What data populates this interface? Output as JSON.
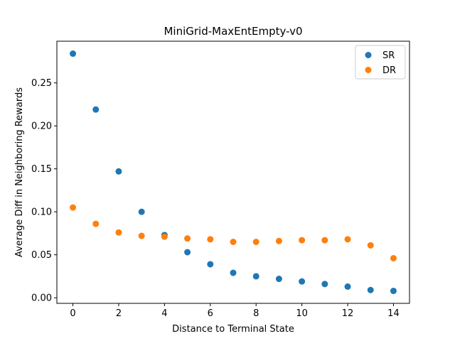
{
  "chart_data": {
    "type": "scatter",
    "title": "MiniGrid-MaxEntEmpty-v0",
    "xlabel": "Distance to Terminal State",
    "ylabel": "Average Diff in Neighboring Rewards",
    "xlim": [
      -0.7,
      14.7
    ],
    "ylim": [
      -0.0065,
      0.2985
    ],
    "xticks": [
      0,
      2,
      4,
      6,
      8,
      10,
      12,
      14
    ],
    "xtick_labels": [
      "0",
      "2",
      "4",
      "6",
      "8",
      "10",
      "12",
      "14"
    ],
    "yticks": [
      0.0,
      0.05,
      0.1,
      0.15,
      0.2,
      0.25
    ],
    "ytick_labels": [
      "0.00",
      "0.05",
      "0.10",
      "0.15",
      "0.20",
      "0.25"
    ],
    "grid": false,
    "legend_position": "top-right",
    "x": [
      0,
      1,
      2,
      3,
      4,
      5,
      6,
      7,
      8,
      9,
      10,
      11,
      12,
      13,
      14
    ],
    "series": [
      {
        "name": "SR",
        "color": "#1f77b4",
        "values": [
          0.284,
          0.219,
          0.147,
          0.1,
          0.073,
          0.053,
          0.039,
          0.029,
          0.025,
          0.022,
          0.019,
          0.016,
          0.013,
          0.009,
          0.008
        ]
      },
      {
        "name": "DR",
        "color": "#ff7f0e",
        "values": [
          0.105,
          0.086,
          0.076,
          0.072,
          0.071,
          0.069,
          0.068,
          0.065,
          0.065,
          0.066,
          0.067,
          0.067,
          0.068,
          0.061,
          0.046
        ]
      }
    ]
  }
}
